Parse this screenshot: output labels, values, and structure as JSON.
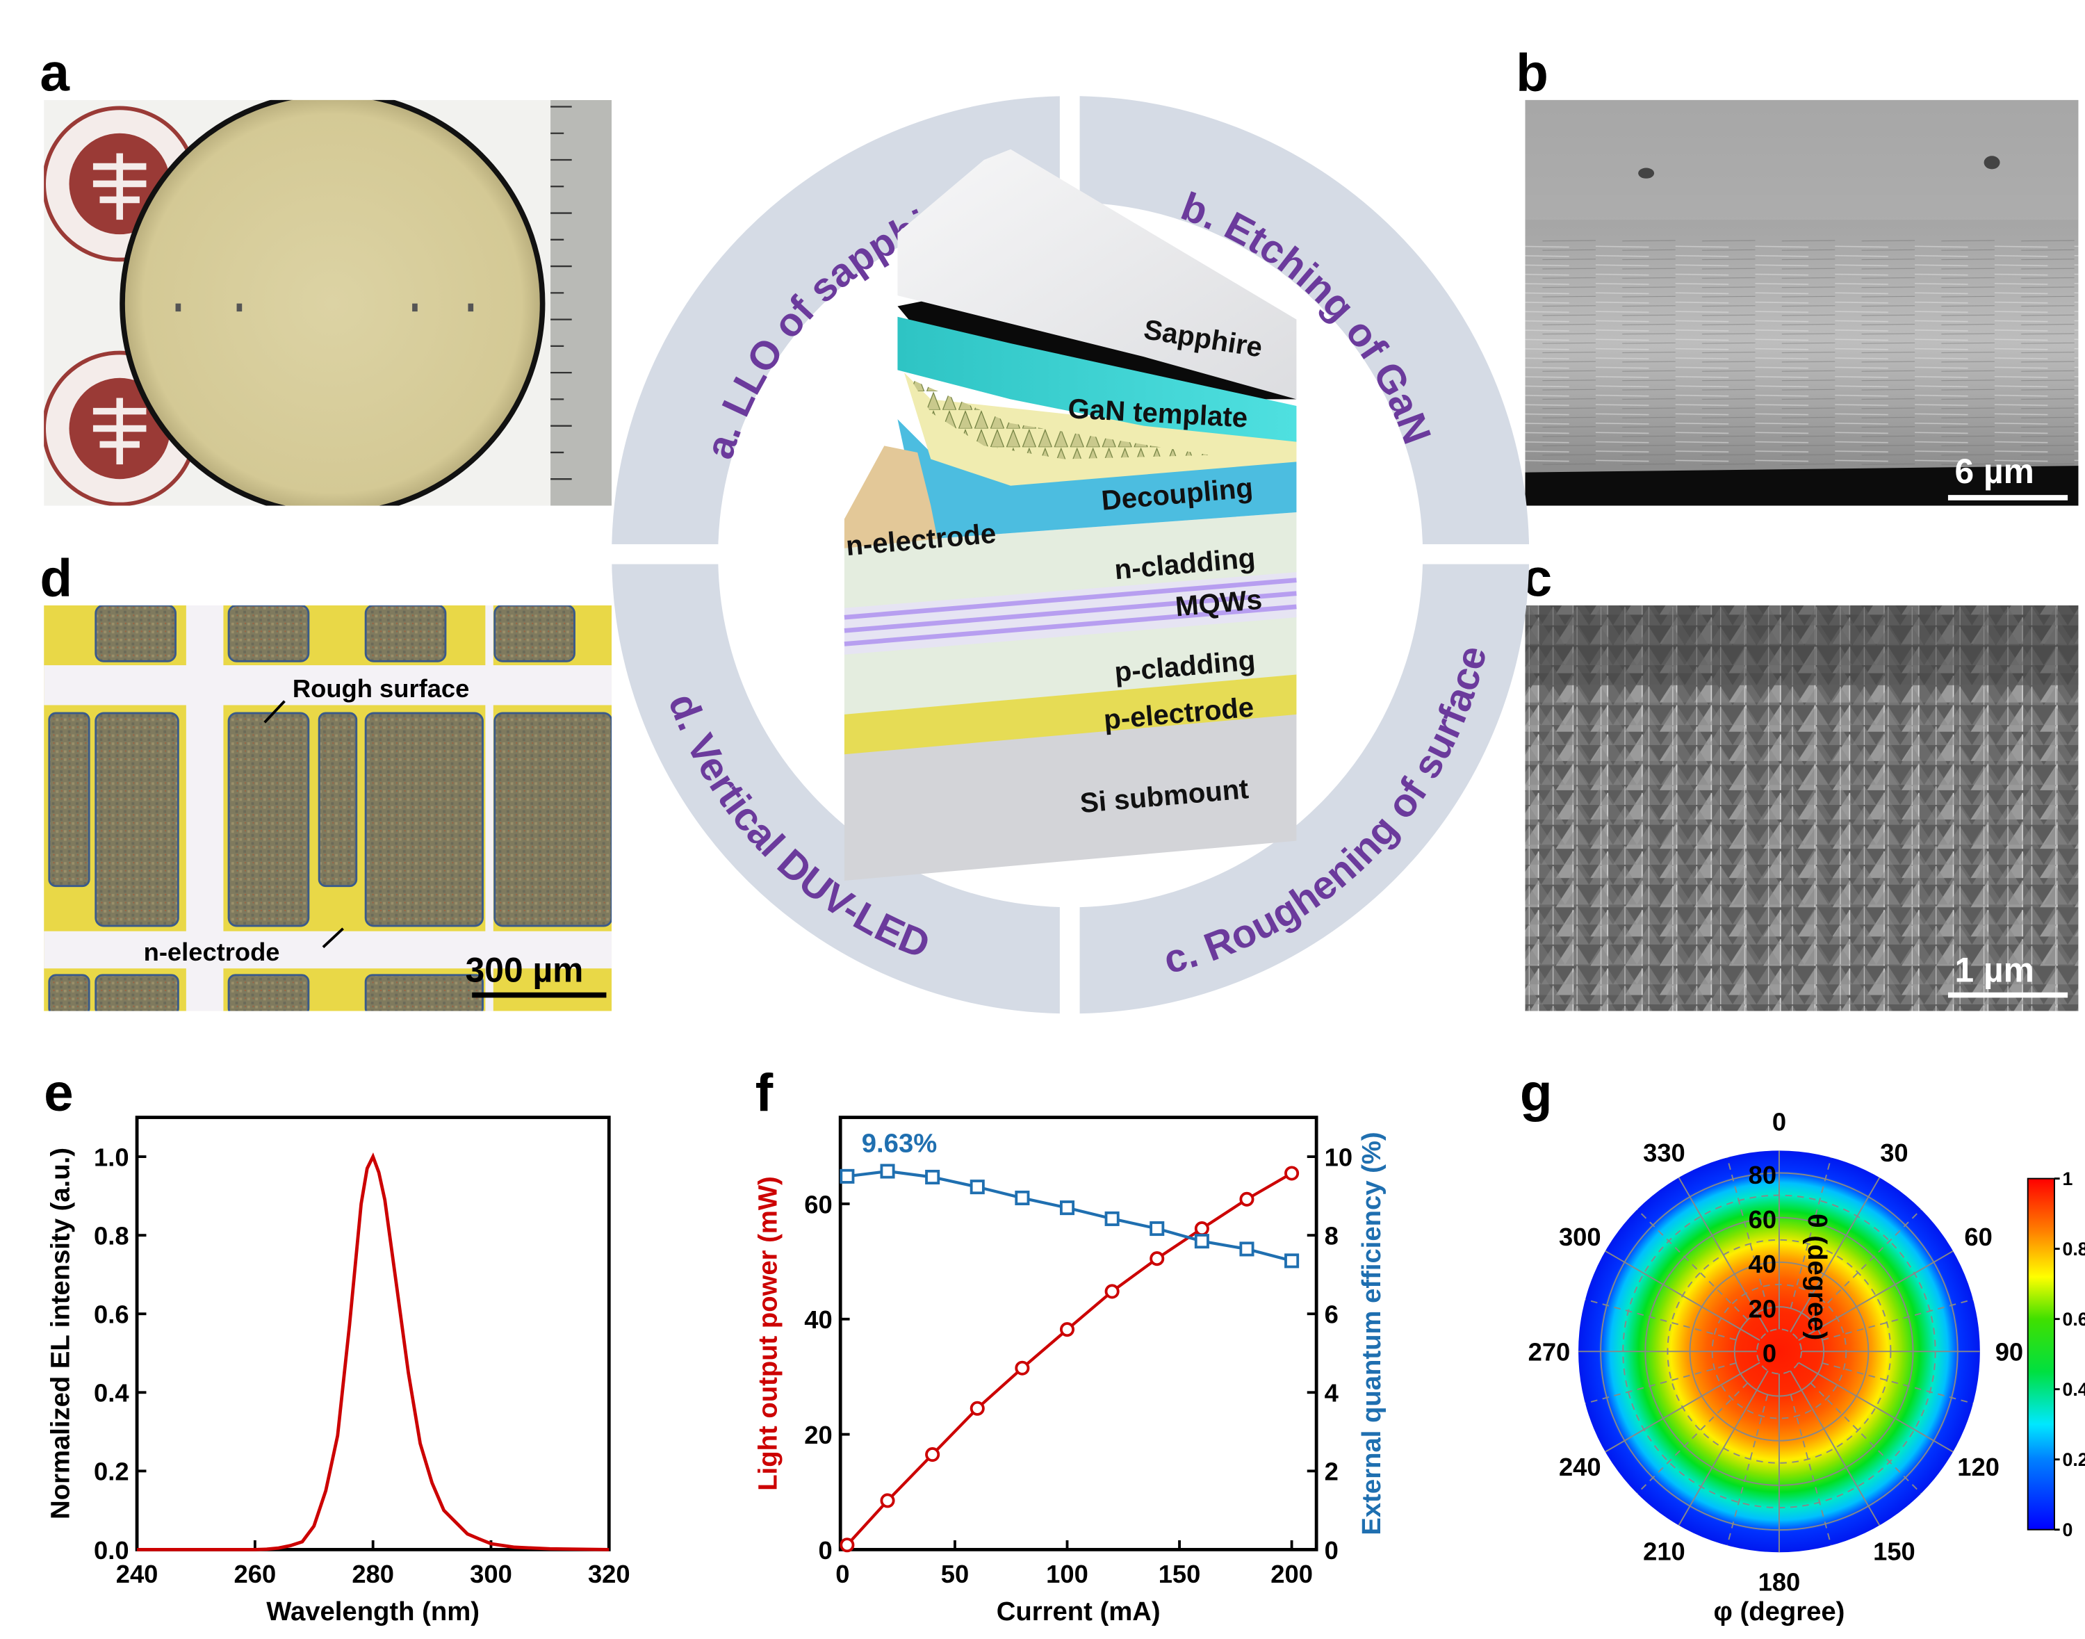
{
  "panel_labels": {
    "a": "a",
    "b": "b",
    "c": "c",
    "d": "d",
    "e": "e",
    "f": "f",
    "g": "g"
  },
  "photos": {
    "b_scale": "6 µm",
    "c_scale": "1 µm",
    "d_scale": "300 µm",
    "d_rough": "Rough surface",
    "d_nelectrode": "n-electrode"
  },
  "ring": {
    "a": "a. LLO of sapphire",
    "b": "b. Etching of GaN",
    "c": "c. Roughening of surface",
    "d": "d. Vertical DUV-LED"
  },
  "layers": {
    "sapphire": "Sapphire",
    "gan": "GaN template",
    "decoupling": "Decoupling",
    "nelectrode": "n-electrode",
    "ncladding": "n-cladding",
    "mqws": "MQWs",
    "pcladding": "p-cladding",
    "pelectrode": "p-electrode",
    "si": "Si submount"
  },
  "colors": {
    "ring": "#d5dbe5",
    "ring_text": "#6b3a9c",
    "red_series": "#cc0000",
    "blue_series": "#1f6fb0"
  },
  "chart_data": [
    {
      "panel": "e",
      "type": "line",
      "xlabel": "Wavelength (nm)",
      "ylabel": "Normalized EL intensity (a.u.)",
      "xlim": [
        240,
        320
      ],
      "ylim": [
        0,
        1.1
      ],
      "xticks": [
        "240",
        "260",
        "280",
        "300",
        "320"
      ],
      "yticks": [
        "0.0",
        "0.2",
        "0.4",
        "0.6",
        "0.8",
        "1.0"
      ],
      "grid": false,
      "series": [
        {
          "color": "#cc0000",
          "x": [
            240,
            250,
            260,
            262,
            264,
            266,
            268,
            270,
            272,
            274,
            276,
            278,
            279,
            280,
            281,
            282,
            284,
            286,
            288,
            290,
            292,
            294,
            296,
            298,
            300,
            304,
            310,
            320
          ],
          "y": [
            0,
            0,
            0,
            0.001,
            0.004,
            0.01,
            0.02,
            0.06,
            0.15,
            0.29,
            0.57,
            0.88,
            0.97,
            1.0,
            0.96,
            0.89,
            0.67,
            0.45,
            0.27,
            0.17,
            0.1,
            0.07,
            0.04,
            0.027,
            0.015,
            0.006,
            0.002,
            0
          ]
        }
      ]
    },
    {
      "panel": "f",
      "type": "line",
      "xlabel": "Current (mA)",
      "ylabel": "Light output power (mW)",
      "y2label": "External quantum efficiency (%)",
      "xlim": [
        -1,
        211
      ],
      "ylim": [
        0,
        75
      ],
      "y2lim": [
        0,
        11
      ],
      "xticks": [
        "0",
        "50",
        "100",
        "150",
        "200"
      ],
      "yticks": [
        "0",
        "20",
        "40",
        "60"
      ],
      "y2ticks": [
        "0",
        "2",
        "4",
        "6",
        "8",
        "10"
      ],
      "annotation": "9.63%",
      "grid": false,
      "x": [
        2,
        20,
        40,
        60,
        80,
        100,
        120,
        140,
        160,
        180,
        200
      ],
      "series": [
        {
          "axis": "left",
          "marker": "circle",
          "color": "#cc0000",
          "values": [
            0.8,
            8.5,
            16.5,
            24.5,
            31.5,
            38.2,
            44.8,
            50.5,
            55.7,
            60.8,
            65.3
          ]
        },
        {
          "axis": "right",
          "marker": "square",
          "color": "#1f6fb0",
          "values": [
            9.5,
            9.63,
            9.48,
            9.23,
            8.95,
            8.7,
            8.42,
            8.17,
            7.85,
            7.65,
            7.35
          ]
        }
      ]
    },
    {
      "panel": "g",
      "type": "heatmap",
      "projection": "polar",
      "theta_label": "θ (degree)",
      "phi_label": "φ (degree)",
      "theta_range": [
        0,
        90
      ],
      "theta_ticks": [
        "0",
        "20",
        "40",
        "60",
        "80"
      ],
      "phi_ticks": [
        "0",
        "30",
        "60",
        "90",
        "120",
        "150",
        "180",
        "210",
        "240",
        "270",
        "300",
        "330"
      ],
      "colorbar": {
        "range": [
          0,
          1
        ],
        "ticks": [
          "0",
          "0.2",
          "0.4",
          "0.6",
          "0.8",
          "1"
        ],
        "colormap": "jet"
      },
      "profile_theta": [
        0,
        20,
        30,
        40,
        50,
        60,
        70,
        80,
        90
      ],
      "profile_intensity": [
        1.0,
        0.95,
        0.9,
        0.83,
        0.72,
        0.52,
        0.3,
        0.08,
        0.02
      ]
    }
  ]
}
